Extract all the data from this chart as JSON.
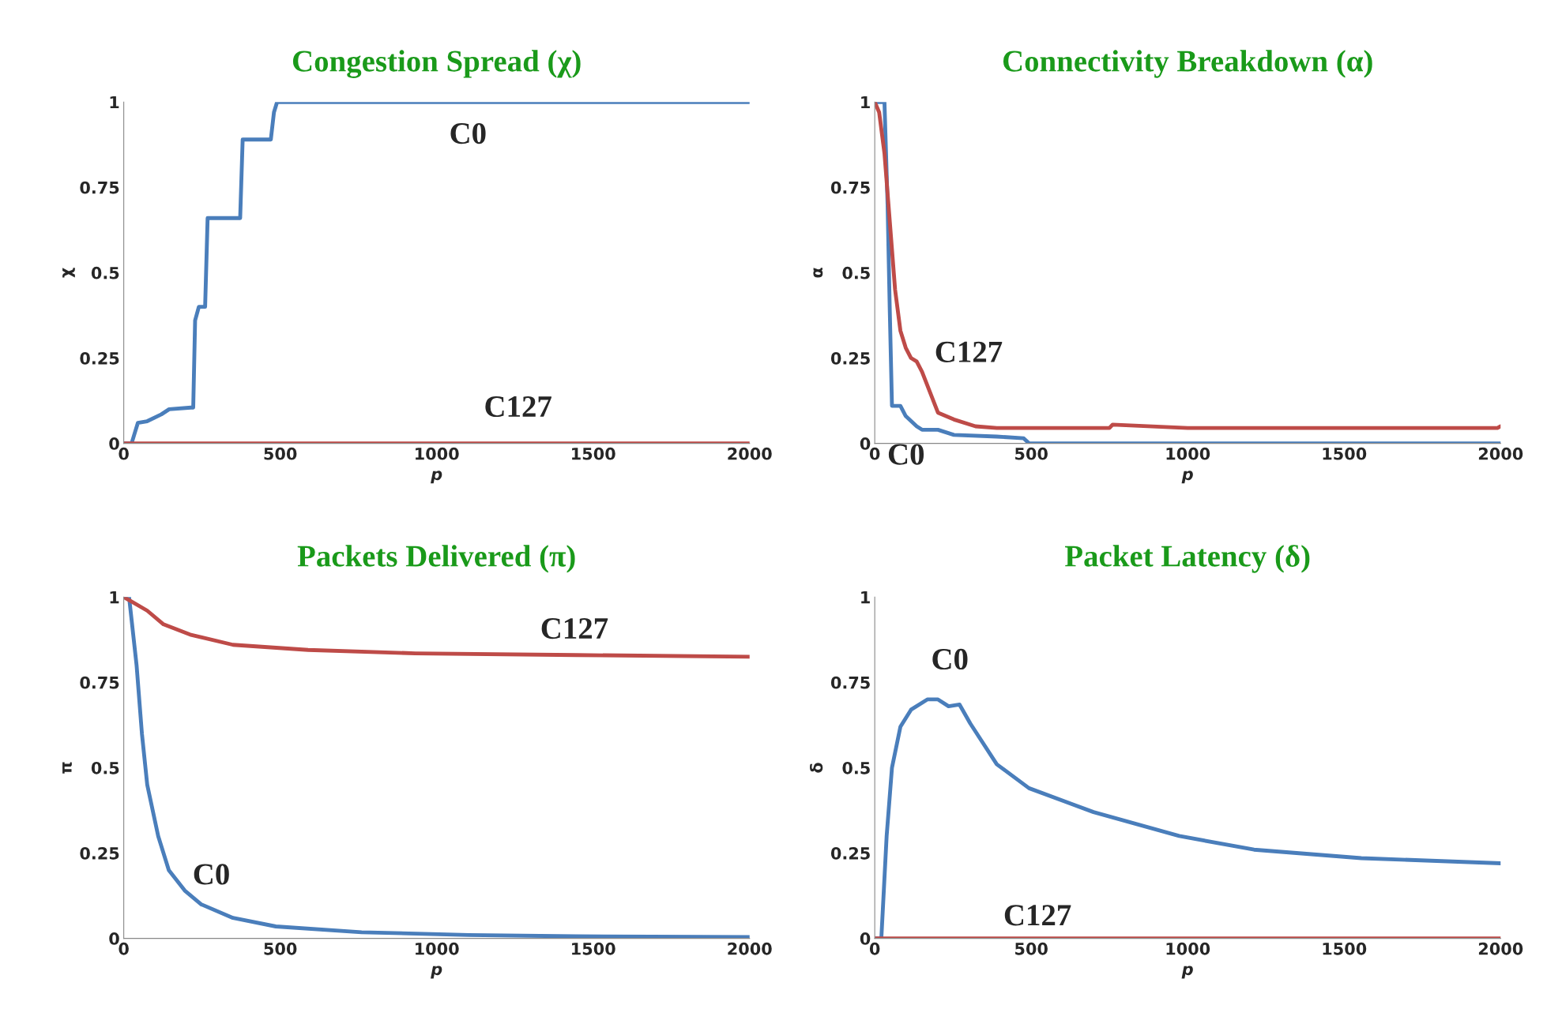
{
  "chart_data": [
    {
      "type": "line",
      "title": "Congestion Spread (χ)",
      "xlabel": "p",
      "ylabel": "χ",
      "xlim": [
        0,
        2000
      ],
      "ylim": [
        0,
        1
      ],
      "xticks": [
        0,
        500,
        1000,
        1500,
        2000
      ],
      "yticks": [
        0,
        0.25,
        0.5,
        0.75,
        1
      ],
      "grid": false,
      "legend": false,
      "marker": "none",
      "line_style": "solid",
      "series": [
        {
          "name": "C0",
          "color": "#4a7ebb",
          "x": [
            0,
            25,
            35,
            45,
            75,
            120,
            145,
            215,
            222,
            228,
            240,
            260,
            268,
            372,
            380,
            470,
            480,
            490,
            2000
          ],
          "values": [
            0,
            0,
            0.03,
            0.06,
            0.065,
            0.085,
            0.1,
            0.105,
            0.105,
            0.36,
            0.4,
            0.4,
            0.66,
            0.66,
            0.89,
            0.89,
            0.97,
            1,
            1
          ]
        },
        {
          "name": "C127",
          "color": "#be4b48",
          "x": [
            0,
            2000
          ],
          "values": [
            0,
            0
          ]
        }
      ]
    },
    {
      "type": "line",
      "title": "Connectivity Breakdown (α)",
      "xlabel": "p",
      "ylabel": "α",
      "xlim": [
        0,
        2000
      ],
      "ylim": [
        0,
        1
      ],
      "xticks": [
        0,
        500,
        1000,
        1500,
        2000
      ],
      "yticks": [
        0,
        0.25,
        0.5,
        0.75,
        1
      ],
      "grid": false,
      "legend": false,
      "marker": "none",
      "line_style": "solid",
      "series": [
        {
          "name": "C0",
          "color": "#4a7ebb",
          "x": [
            0,
            31,
            41,
            48,
            55,
            82,
            99,
            134,
            151,
            202,
            253,
            390,
            476,
            493,
            2000
          ],
          "values": [
            1,
            1,
            0.7,
            0.39,
            0.11,
            0.11,
            0.08,
            0.05,
            0.04,
            0.04,
            0.025,
            0.02,
            0.015,
            0,
            0
          ]
        },
        {
          "name": "C127",
          "color": "#be4b48",
          "x": [
            0,
            14,
            31,
            48,
            65,
            82,
            99,
            116,
            134,
            151,
            168,
            185,
            202,
            253,
            322,
            390,
            750,
            760,
            1000,
            1990,
            2000
          ],
          "values": [
            1,
            0.97,
            0.85,
            0.65,
            0.45,
            0.33,
            0.28,
            0.25,
            0.24,
            0.21,
            0.17,
            0.13,
            0.09,
            0.07,
            0.05,
            0.045,
            0.045,
            0.055,
            0.045,
            0.045,
            0.05
          ]
        }
      ]
    },
    {
      "type": "line",
      "title": "Packets Delivered (π)",
      "xlabel": "p",
      "ylabel": "π",
      "xlim": [
        0,
        2000
      ],
      "ylim": [
        0,
        1
      ],
      "xticks": [
        0,
        500,
        1000,
        1500,
        2000
      ],
      "yticks": [
        0,
        0.25,
        0.5,
        0.75,
        1
      ],
      "grid": false,
      "legend": false,
      "marker": "none",
      "line_style": "solid",
      "series": [
        {
          "name": "C0",
          "color": "#4a7ebb",
          "x": [
            0,
            17,
            41,
            58,
            75,
            110,
            144,
            195,
            247,
            349,
            486,
            760,
            1103,
            1445,
            2000
          ],
          "values": [
            1,
            1,
            0.8,
            0.6,
            0.45,
            0.3,
            0.2,
            0.14,
            0.1,
            0.06,
            0.035,
            0.018,
            0.01,
            0.006,
            0.004
          ]
        },
        {
          "name": "C127",
          "color": "#be4b48",
          "x": [
            0,
            75,
            127,
            212,
            349,
            589,
            932,
            1445,
            2000
          ],
          "values": [
            1,
            0.96,
            0.92,
            0.89,
            0.86,
            0.845,
            0.835,
            0.83,
            0.825
          ]
        }
      ]
    },
    {
      "type": "line",
      "title": "Packet Latency (δ)",
      "xlabel": "p",
      "ylabel": "δ",
      "xlim": [
        0,
        2000
      ],
      "ylim": [
        0,
        1
      ],
      "xticks": [
        0,
        500,
        1000,
        1500,
        2000
      ],
      "yticks": [
        0,
        0.25,
        0.5,
        0.75,
        1
      ],
      "grid": false,
      "legend": false,
      "marker": "none",
      "line_style": "solid",
      "series": [
        {
          "name": "C0",
          "color": "#4a7ebb",
          "x": [
            0,
            21,
            38,
            55,
            82,
            116,
            168,
            202,
            236,
            271,
            305,
            390,
            493,
            699,
            973,
            1212,
            1555,
            2000
          ],
          "values": [
            0,
            0,
            0.3,
            0.5,
            0.62,
            0.67,
            0.7,
            0.7,
            0.68,
            0.685,
            0.63,
            0.51,
            0.44,
            0.37,
            0.3,
            0.26,
            0.235,
            0.22
          ]
        },
        {
          "name": "C127",
          "color": "#be4b48",
          "x": [
            0,
            2000
          ],
          "values": [
            0,
            0
          ]
        }
      ]
    }
  ]
}
